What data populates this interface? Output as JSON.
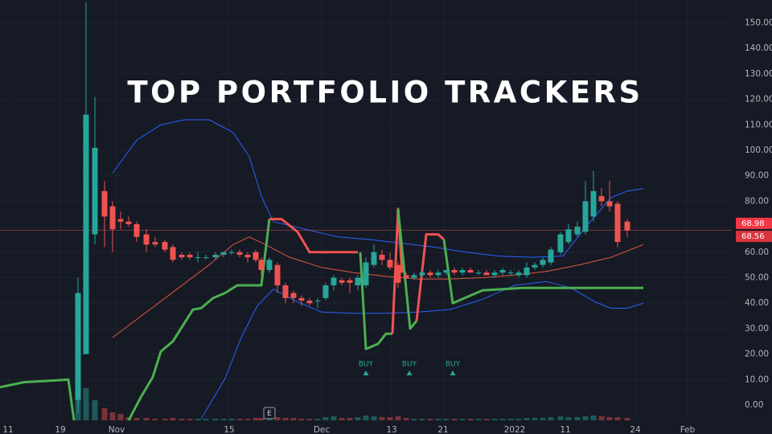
{
  "chart_data": {
    "type": "candlestick",
    "title": "TOP PORTFOLIO TRACKERS",
    "x": [
      9.7,
      10.7,
      11.8,
      13.0,
      14.0,
      15.0,
      16.0,
      17.0,
      18.2,
      19.3,
      20.5,
      21.5,
      22.6,
      23.6,
      24.6,
      25.6,
      26.8,
      27.8,
      28.8,
      29.8,
      30.8,
      31.8,
      32.5,
      33.5,
      34.5,
      35.5,
      36.5,
      37.5,
      38.5,
      39.5,
      40.5,
      41.5,
      42.5,
      43.5,
      44.5,
      45.5,
      46.5,
      47.5,
      48.5,
      49.5,
      50.5,
      51.5,
      52.5,
      53.5,
      54.5,
      55.5,
      56.5,
      57.5,
      58.5,
      59.5,
      60.5,
      61.5,
      62.5,
      63.5,
      64.5,
      65.5,
      66.5,
      67.5,
      68.5,
      69.7,
      70.7,
      71.8,
      72.8,
      73.8,
      74.8,
      75.8,
      76.8,
      78.0
    ],
    "open": [
      2,
      20,
      67,
      84,
      78,
      73,
      72,
      71,
      67,
      64,
      64,
      62,
      59,
      59,
      58,
      58,
      58,
      59,
      60,
      60,
      59,
      60,
      57,
      53,
      55,
      47,
      44,
      42,
      41,
      41,
      42,
      47,
      49,
      49,
      47,
      47,
      55,
      59,
      57,
      55,
      51,
      50,
      51,
      52,
      51,
      52,
      53,
      52,
      53,
      52,
      52,
      51,
      52,
      52,
      51,
      51,
      54,
      55,
      56,
      60,
      64,
      67,
      68,
      74,
      82,
      80,
      79,
      72
    ],
    "high": [
      50,
      158,
      121,
      88,
      80,
      76,
      74,
      72,
      69,
      66,
      65,
      63,
      60,
      60,
      60,
      59,
      60,
      60,
      61,
      61,
      60,
      61,
      58,
      58,
      56,
      48,
      45,
      43,
      42,
      42,
      48,
      51,
      50,
      50,
      51,
      58,
      63,
      61,
      60,
      56,
      52,
      52,
      53,
      53,
      53,
      53,
      54,
      54,
      54,
      53,
      53,
      53,
      54,
      53,
      53,
      56,
      56,
      58,
      62,
      68,
      71,
      72,
      88,
      92,
      85,
      88,
      80,
      73
    ],
    "low": [
      -3,
      20,
      63,
      62,
      60,
      69,
      70,
      64,
      60,
      62,
      60,
      56,
      57,
      57,
      56,
      57,
      57,
      58,
      59,
      58,
      56,
      56,
      51,
      52,
      44,
      40,
      40,
      39,
      39,
      38,
      41,
      45,
      47,
      44,
      45,
      46,
      54,
      55,
      53,
      46,
      49,
      49,
      50,
      50,
      50,
      51,
      51,
      51,
      52,
      51,
      51,
      50,
      51,
      51,
      50,
      50,
      53,
      54,
      55,
      59,
      63,
      66,
      67,
      72,
      78,
      76,
      62,
      66
    ],
    "close": [
      44,
      114,
      101,
      74,
      69,
      72,
      71,
      66,
      63,
      63,
      61,
      57,
      58,
      58,
      58,
      58,
      59,
      60,
      60,
      59,
      58,
      57,
      53,
      57,
      47,
      42,
      42,
      41,
      40,
      41,
      47,
      50,
      48,
      48,
      50,
      56,
      60,
      57,
      54,
      48,
      50,
      51,
      52,
      51,
      52,
      53,
      52,
      53,
      52,
      52,
      51,
      52,
      53,
      52,
      52,
      54,
      55,
      57,
      61,
      67,
      69,
      70,
      80,
      84,
      80,
      78,
      64,
      68.56
    ],
    "volume": [
      45,
      40,
      25,
      15,
      10,
      8,
      4,
      3,
      3,
      2,
      2,
      3,
      2,
      2,
      2,
      2,
      2,
      2,
      2,
      2,
      2,
      3,
      3,
      4,
      4,
      3,
      3,
      2,
      2,
      2,
      4,
      5,
      3,
      3,
      4,
      6,
      5,
      4,
      4,
      5,
      3,
      2,
      2,
      2,
      2,
      2,
      2,
      2,
      2,
      2,
      2,
      2,
      2,
      2,
      2,
      3,
      3,
      3,
      4,
      5,
      4,
      4,
      5,
      6,
      5,
      4,
      4,
      3
    ],
    "up_color": "#26a69a",
    "down_color": "#ef5350",
    "lines": [
      {
        "color": "#2962ff",
        "width": 1,
        "x": [
          14,
          17,
          20,
          23,
          26,
          29,
          31,
          32.5,
          34,
          38,
          42,
          46,
          50,
          54,
          58,
          62,
          66,
          70,
          73,
          76,
          78,
          80
        ],
        "values": [
          91,
          104,
          110,
          112,
          112,
          107,
          97.5,
          82,
          72,
          69,
          66,
          65,
          63.5,
          62,
          60,
          58.5,
          58,
          58.5,
          70.5,
          81.5,
          84,
          85
        ]
      },
      {
        "color": "#2962ff",
        "width": 1,
        "x": [
          25,
          28,
          30,
          32,
          34,
          37,
          40,
          44,
          48,
          52,
          56,
          60,
          64,
          68,
          71,
          74,
          76,
          78,
          80
        ],
        "values": [
          -5.5,
          10.5,
          26.5,
          39,
          45.5,
          40.5,
          36.5,
          36,
          36,
          36.5,
          37.5,
          41.5,
          47,
          48.5,
          46,
          40.5,
          38,
          38,
          40
        ]
      },
      {
        "color": "#e0593d",
        "width": 1,
        "x": [
          14,
          18,
          22,
          26,
          29,
          31,
          33,
          36,
          40,
          44,
          48,
          52,
          56,
          60,
          64,
          68,
          72,
          76,
          80
        ],
        "values": [
          26.5,
          36,
          45.5,
          55,
          63,
          66,
          63,
          58,
          54,
          52,
          50.5,
          49.5,
          49.5,
          50,
          51,
          52.5,
          55,
          58,
          63
        ]
      },
      {
        "color": "#4caf50",
        "width": 3,
        "x": [
          0,
          3,
          6,
          8.5,
          9.2
        ],
        "values": [
          7,
          9,
          9.5,
          10,
          -6
        ]
      },
      {
        "color": "#4caf50",
        "width": 3,
        "x": [
          16,
          17.5,
          19,
          20,
          21.5,
          24,
          25,
          26.5,
          28,
          29.5,
          32.5,
          33.5
        ],
        "values": [
          -6,
          3,
          11,
          21,
          25,
          37.5,
          38,
          42,
          44,
          47,
          47,
          73
        ]
      },
      {
        "color": "#f05350",
        "width": 3,
        "x": [
          33.5,
          35,
          37,
          38.5,
          44.5
        ],
        "values": [
          73,
          73,
          68,
          60,
          60
        ]
      },
      {
        "color": "#4caf50",
        "width": 3,
        "x": [
          44.8,
          45.5,
          47,
          48,
          48.8
        ],
        "values": [
          60,
          22,
          24,
          28,
          28
        ]
      },
      {
        "color": "#f05350",
        "width": 3,
        "x": [
          48.8,
          49.5,
          50
        ],
        "values": [
          28,
          77,
          52
        ]
      },
      {
        "color": "#4caf50",
        "width": 3,
        "x": [
          49.5,
          51,
          51.8
        ],
        "values": [
          77,
          30,
          33
        ]
      },
      {
        "color": "#f05350",
        "width": 3,
        "x": [
          51.8,
          53,
          54.5,
          55.2
        ],
        "values": [
          33,
          67,
          67,
          65
        ]
      },
      {
        "color": "#4caf50",
        "width": 3,
        "x": [
          55.2,
          56.3,
          60,
          65,
          80
        ],
        "values": [
          65,
          40,
          45,
          46,
          46
        ]
      }
    ],
    "price_labels": [
      {
        "value": 68.98,
        "label": "68.98"
      },
      {
        "value": 68.56,
        "label": "68.56"
      }
    ],
    "signals": [
      {
        "x": 45.5,
        "label": "BUY"
      },
      {
        "x": 50.9,
        "label": "BUY"
      },
      {
        "x": 56.3,
        "label": "BUY"
      }
    ],
    "events": [
      {
        "x": 33.5,
        "label": "E"
      }
    ],
    "xlim": [
      0,
      91
    ],
    "ylim": [
      -6,
      159
    ],
    "xticks": [
      {
        "value": 1,
        "label": "11"
      },
      {
        "value": 7.5,
        "label": "19"
      },
      {
        "value": 14.5,
        "label": "Nov"
      },
      {
        "value": 28.5,
        "label": "15"
      },
      {
        "value": 40,
        "label": "Dec"
      },
      {
        "value": 48.7,
        "label": "13"
      },
      {
        "value": 55.1,
        "label": "21"
      },
      {
        "value": 64,
        "label": "2022"
      },
      {
        "value": 70.3,
        "label": "11"
      },
      {
        "value": 79,
        "label": "24"
      },
      {
        "value": 85.5,
        "label": "Feb"
      }
    ],
    "yticks": [
      {
        "value": 0,
        "label": "0.00"
      },
      {
        "value": 10,
        "label": "10.00"
      },
      {
        "value": 20,
        "label": "20.00"
      },
      {
        "value": 30,
        "label": "30.00"
      },
      {
        "value": 40,
        "label": "40.00"
      },
      {
        "value": 50,
        "label": "50.00"
      },
      {
        "value": 60,
        "label": "60.00"
      },
      {
        "value": 70,
        "label": "70.00"
      },
      {
        "value": 80,
        "label": "80.00"
      },
      {
        "value": 90,
        "label": "90.00"
      },
      {
        "value": 100,
        "label": "100.00"
      },
      {
        "value": 110,
        "label": "110.00"
      },
      {
        "value": 120,
        "label": "120.00"
      },
      {
        "value": 130,
        "label": "130.00"
      },
      {
        "value": 140,
        "label": "140.00"
      },
      {
        "value": 150,
        "label": "150.00"
      }
    ],
    "grid": true
  }
}
